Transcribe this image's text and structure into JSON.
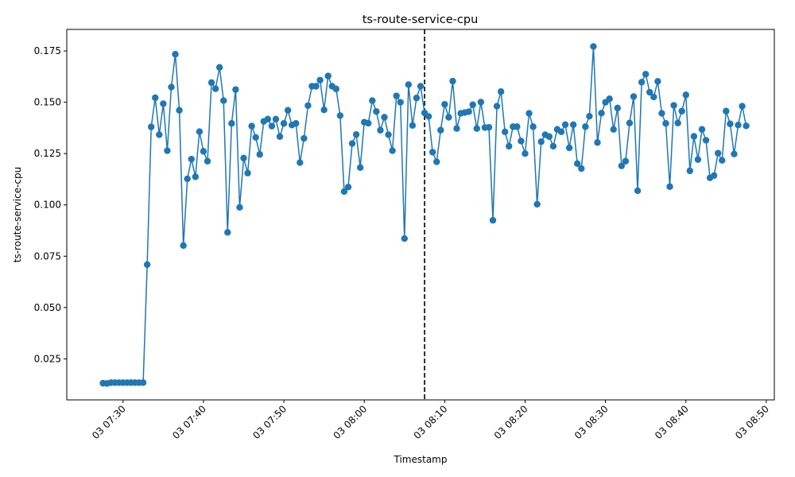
{
  "chart_data": {
    "type": "line",
    "title": "ts-route-service-cpu",
    "xlabel": "Timestamp",
    "ylabel": "ts-route-service-cpu",
    "xlim": [
      "03 07:23",
      "03 08:51"
    ],
    "ylim": [
      0.005,
      0.1855
    ],
    "x_ticks": [
      {
        "t": "03 07:30",
        "label": "03 07:30"
      },
      {
        "t": "03 07:40",
        "label": "03 07:40"
      },
      {
        "t": "03 07:50",
        "label": "03 07:50"
      },
      {
        "t": "03 08:00",
        "label": "03 08:00"
      },
      {
        "t": "03 08:10",
        "label": "03 08:10"
      },
      {
        "t": "03 08:20",
        "label": "03 08:20"
      },
      {
        "t": "03 08:30",
        "label": "03 08:30"
      },
      {
        "t": "03 08:40",
        "label": "03 08:40"
      },
      {
        "t": "03 08:50",
        "label": "03 08:50"
      }
    ],
    "y_ticks": [
      {
        "v": 0.025,
        "label": "0.025"
      },
      {
        "v": 0.05,
        "label": "0.050"
      },
      {
        "v": 0.075,
        "label": "0.075"
      },
      {
        "v": 0.1,
        "label": "0.100"
      },
      {
        "v": 0.125,
        "label": "0.125"
      },
      {
        "v": 0.15,
        "label": "0.150"
      },
      {
        "v": 0.175,
        "label": "0.175"
      }
    ],
    "marker_line": {
      "t": "03 08:07:30",
      "style": "dashed",
      "color": "#000000"
    },
    "grid": false,
    "colors": {
      "series": "#1f77b4"
    },
    "series": [
      {
        "x_start": "03 07:27:30",
        "interval_seconds": 30,
        "values": [
          0.0131,
          0.013,
          0.0134,
          0.0134,
          0.0134,
          0.0134,
          0.0134,
          0.0134,
          0.0134,
          0.0134,
          0.0134,
          0.0709,
          0.138,
          0.1522,
          0.1342,
          0.1493,
          0.1264,
          0.1574,
          0.1734,
          0.1461,
          0.0802,
          0.1127,
          0.1223,
          0.1137,
          0.1357,
          0.1261,
          0.1213,
          0.1596,
          0.1566,
          0.167,
          0.1508,
          0.0866,
          0.1397,
          0.1562,
          0.0988,
          0.1228,
          0.1155,
          0.1384,
          0.1329,
          0.1246,
          0.1407,
          0.1418,
          0.1384,
          0.1418,
          0.1333,
          0.1397,
          0.1461,
          0.1389,
          0.1397,
          0.1206,
          0.1324,
          0.1484,
          0.1578,
          0.1578,
          0.1608,
          0.1463,
          0.1628,
          0.1578,
          0.1565,
          0.1435,
          0.1065,
          0.1087,
          0.1299,
          0.1343,
          0.1182,
          0.1403,
          0.1398,
          0.1508,
          0.1455,
          0.1364,
          0.1427,
          0.1342,
          0.1264,
          0.1531,
          0.15,
          0.0836,
          0.1586,
          0.1387,
          0.1521,
          0.1578,
          0.1448,
          0.1431,
          0.1257,
          0.121,
          0.1364,
          0.149,
          0.1427,
          0.1603,
          0.1372,
          0.1446,
          0.145,
          0.1454,
          0.1488,
          0.1372,
          0.1501,
          0.1377,
          0.1378,
          0.0925,
          0.1481,
          0.1552,
          0.1356,
          0.1286,
          0.1381,
          0.1381,
          0.1311,
          0.125,
          0.1446,
          0.1381,
          0.1003,
          0.1308,
          0.1342,
          0.1333,
          0.1286,
          0.1368,
          0.1356,
          0.1391,
          0.1278,
          0.1391,
          0.1201,
          0.1177,
          0.1381,
          0.1432,
          0.1772,
          0.1304,
          0.1447,
          0.15,
          0.1517,
          0.1368,
          0.1472,
          0.119,
          0.1213,
          0.1399,
          0.1528,
          0.1069,
          0.1598,
          0.1637,
          0.1549,
          0.1526,
          0.1602,
          0.1446,
          0.1397,
          0.1089,
          0.1485,
          0.1399,
          0.1457,
          0.1536,
          0.1166,
          0.1334,
          0.1221,
          0.1368,
          0.1315,
          0.1132,
          0.1143,
          0.1252,
          0.1217,
          0.1457,
          0.1395,
          0.1248,
          0.1389,
          0.1481,
          0.1385
        ]
      }
    ]
  }
}
